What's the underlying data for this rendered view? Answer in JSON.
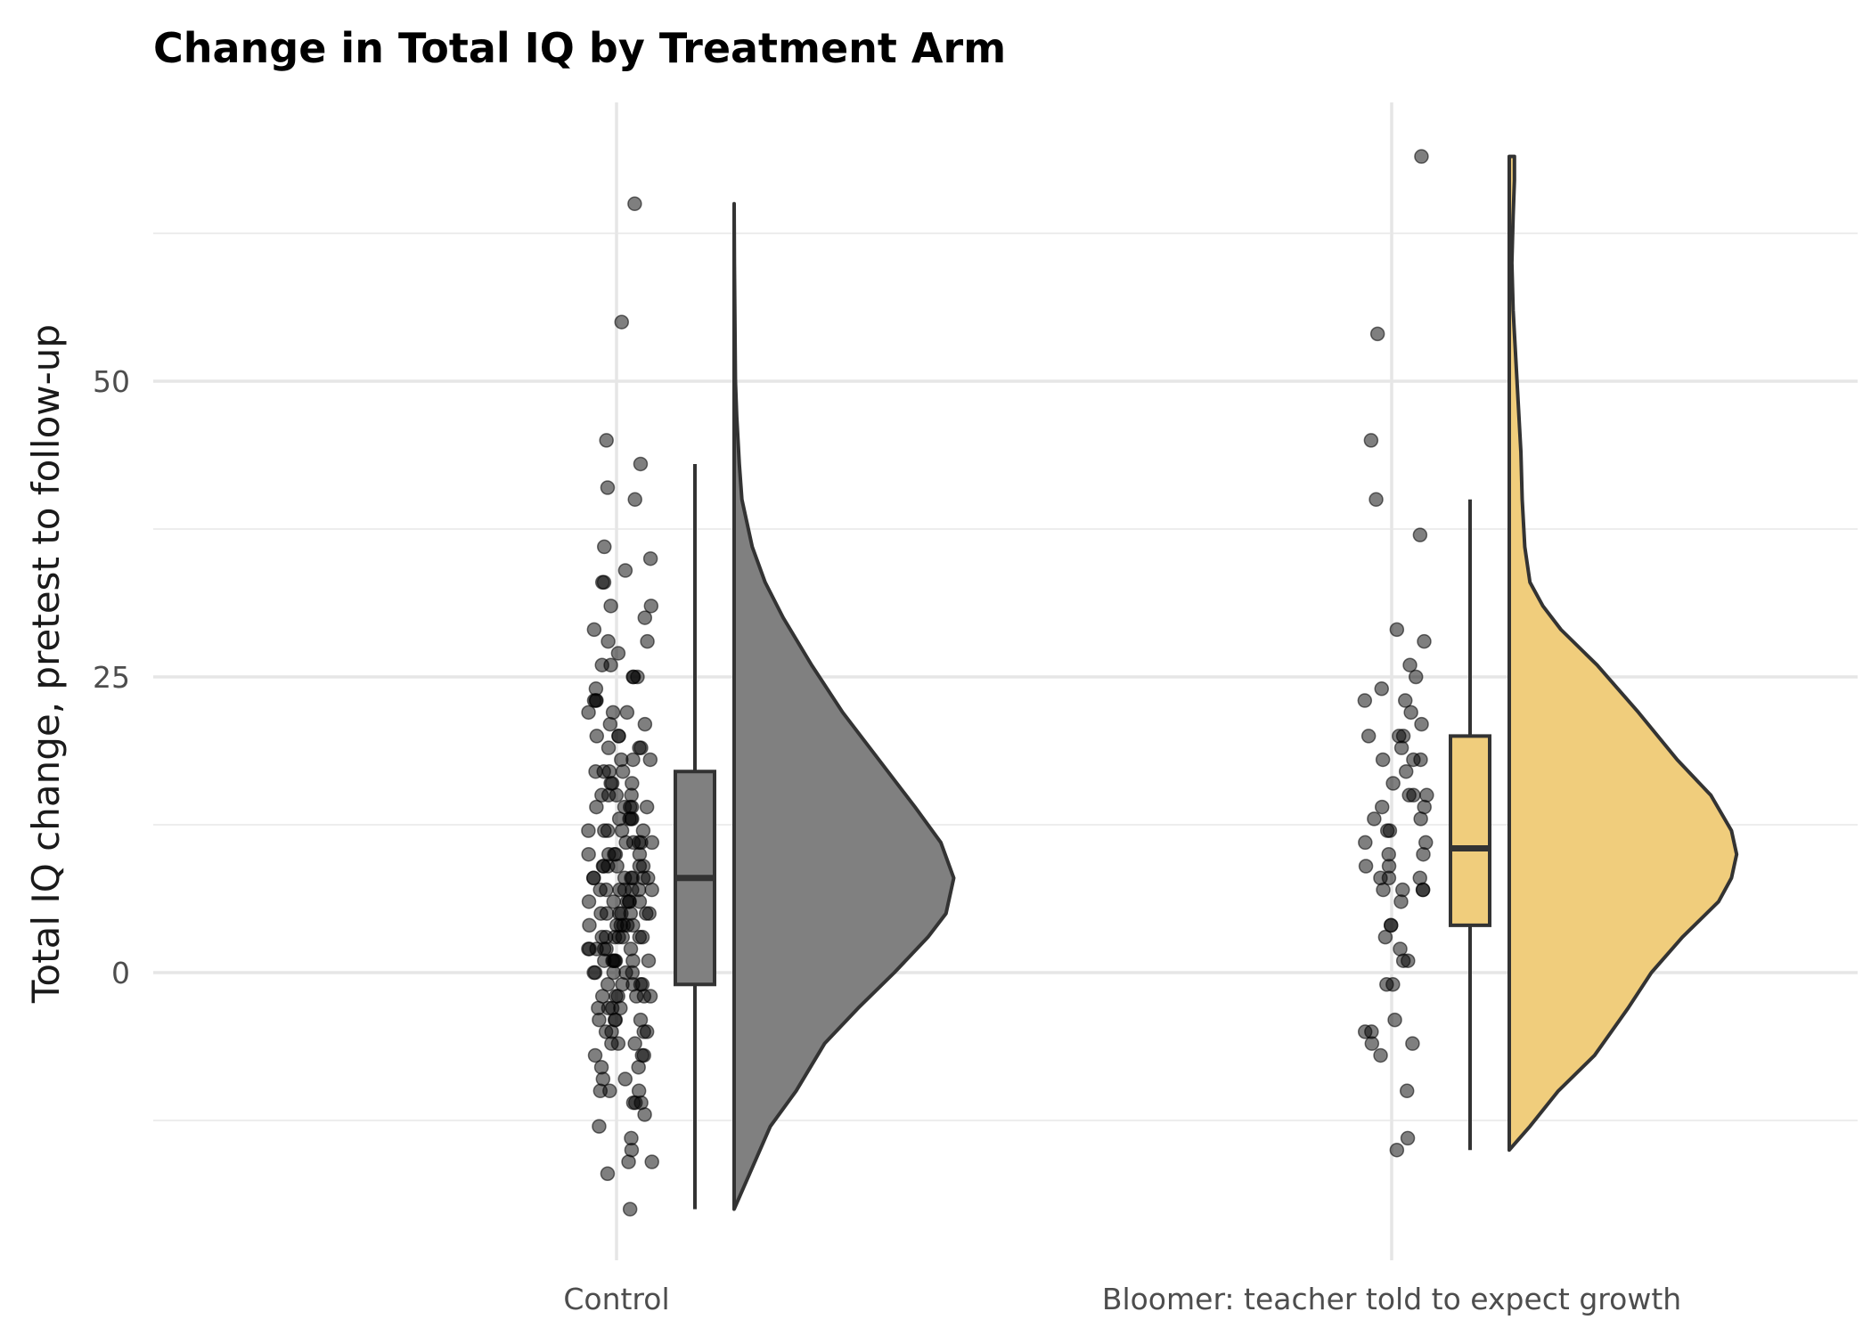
{
  "chart_data": {
    "type": "raincloud",
    "title": "Change in Total IQ by Treatment Arm",
    "xlabel": "",
    "ylabel": "Total IQ change, pretest to follow-up",
    "ylim": [
      -24,
      73
    ],
    "y_ticks": [
      0,
      25,
      50
    ],
    "grid": true,
    "colors": {
      "Control": "#808080",
      "Bloomer": "#F0CD7C",
      "outline": "#333333",
      "point": "#000000"
    },
    "categories": [
      "Control",
      "Bloomer: teacher told to expect growth"
    ],
    "series": [
      {
        "name": "Control",
        "box": {
          "whisker_low": -20,
          "q1": -1,
          "median": 8,
          "q3": 17,
          "whisker_high": 43
        },
        "range": [
          -20,
          65
        ],
        "density": [
          [
            -20,
            0
          ],
          [
            -17,
            0.06
          ],
          [
            -13,
            0.14
          ],
          [
            -10,
            0.24
          ],
          [
            -6,
            0.35
          ],
          [
            -3,
            0.48
          ],
          [
            0,
            0.62
          ],
          [
            3,
            0.75
          ],
          [
            5,
            0.82
          ],
          [
            8,
            0.85
          ],
          [
            11,
            0.8
          ],
          [
            14,
            0.7
          ],
          [
            18,
            0.56
          ],
          [
            22,
            0.42
          ],
          [
            26,
            0.3
          ],
          [
            30,
            0.19
          ],
          [
            33,
            0.12
          ],
          [
            36,
            0.07
          ],
          [
            40,
            0.03
          ],
          [
            43,
            0.02
          ],
          [
            47,
            0.01
          ],
          [
            50,
            0.005
          ],
          [
            55,
            0.003
          ],
          [
            60,
            0.001
          ],
          [
            65,
            0
          ]
        ],
        "points": [
          -20,
          -17,
          -16,
          -16,
          -15,
          -14,
          -13,
          -12,
          -11,
          -11,
          -11,
          -10,
          -10,
          -10,
          -9,
          -9,
          -8,
          -8,
          -7,
          -7,
          -7,
          -6,
          -6,
          -6,
          -5,
          -5,
          -5,
          -5,
          -4,
          -4,
          -4,
          -4,
          -3,
          -3,
          -3,
          -3,
          -2,
          -2,
          -2,
          -2,
          -2,
          -2,
          -1,
          -1,
          -1,
          -1,
          -1,
          0,
          0,
          0,
          0,
          0,
          1,
          1,
          1,
          1,
          1,
          1,
          1,
          2,
          2,
          2,
          2,
          2,
          2,
          3,
          3,
          3,
          3,
          3,
          3,
          3,
          4,
          4,
          4,
          4,
          4,
          4,
          5,
          5,
          5,
          5,
          5,
          5,
          5,
          6,
          6,
          6,
          6,
          6,
          6,
          7,
          7,
          7,
          7,
          7,
          7,
          7,
          8,
          8,
          8,
          8,
          8,
          8,
          8,
          9,
          9,
          9,
          9,
          9,
          9,
          10,
          10,
          10,
          10,
          10,
          11,
          11,
          11,
          11,
          11,
          12,
          12,
          12,
          12,
          12,
          13,
          13,
          13,
          13,
          14,
          14,
          14,
          14,
          14,
          15,
          15,
          15,
          15,
          16,
          16,
          16,
          17,
          17,
          17,
          17,
          18,
          18,
          18,
          19,
          19,
          19,
          20,
          20,
          20,
          21,
          21,
          22,
          22,
          22,
          23,
          23,
          23,
          24,
          25,
          25,
          25,
          26,
          26,
          27,
          28,
          28,
          29,
          30,
          31,
          31,
          33,
          33,
          34,
          35,
          36,
          40,
          41,
          43,
          45,
          55,
          65
        ]
      },
      {
        "name": "Bloomer: teacher told to expect growth",
        "box": {
          "whisker_low": -15,
          "q1": 4,
          "median": 10.5,
          "q3": 20,
          "whisker_high": 40
        },
        "range": [
          -15,
          69
        ],
        "density": [
          [
            -15,
            0
          ],
          [
            -13,
            0.08
          ],
          [
            -10,
            0.19
          ],
          [
            -7,
            0.33
          ],
          [
            -3,
            0.46
          ],
          [
            0,
            0.55
          ],
          [
            3,
            0.67
          ],
          [
            6,
            0.81
          ],
          [
            8,
            0.86
          ],
          [
            10,
            0.88
          ],
          [
            12,
            0.86
          ],
          [
            15,
            0.78
          ],
          [
            18,
            0.65
          ],
          [
            22,
            0.5
          ],
          [
            26,
            0.34
          ],
          [
            29,
            0.2
          ],
          [
            31,
            0.13
          ],
          [
            33,
            0.08
          ],
          [
            36,
            0.06
          ],
          [
            40,
            0.05
          ],
          [
            44,
            0.045
          ],
          [
            48,
            0.035
          ],
          [
            52,
            0.025
          ],
          [
            56,
            0.015
          ],
          [
            60,
            0.01
          ],
          [
            64,
            0.015
          ],
          [
            67,
            0.02
          ],
          [
            69,
            0.02
          ]
        ],
        "points": [
          -15,
          -14,
          -10,
          -7,
          -6,
          -6,
          -5,
          -5,
          -4,
          -1,
          -1,
          1,
          1,
          2,
          3,
          4,
          4,
          6,
          7,
          7,
          7,
          7,
          8,
          8,
          8,
          9,
          9,
          10,
          10,
          11,
          11,
          12,
          12,
          13,
          13,
          14,
          14,
          15,
          15,
          15,
          16,
          17,
          18,
          18,
          18,
          19,
          20,
          20,
          20,
          21,
          22,
          23,
          23,
          24,
          25,
          26,
          28,
          29,
          37,
          40,
          45,
          54,
          69
        ]
      }
    ]
  }
}
